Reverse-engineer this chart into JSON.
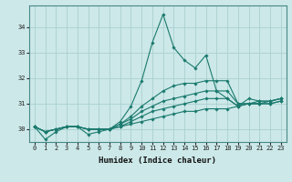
{
  "xlabel": "Humidex (Indice chaleur)",
  "ylabel": "",
  "background_color": "#cce8e8",
  "grid_color": "#aad0d0",
  "line_color": "#1a7a6e",
  "xlim": [
    -0.5,
    23.5
  ],
  "ylim": [
    29.5,
    34.85
  ],
  "yticks": [
    30,
    31,
    32,
    33,
    34
  ],
  "xticks": [
    0,
    1,
    2,
    3,
    4,
    5,
    6,
    7,
    8,
    9,
    10,
    11,
    12,
    13,
    14,
    15,
    16,
    17,
    18,
    19,
    20,
    21,
    22,
    23
  ],
  "series": [
    [
      30.1,
      29.6,
      29.9,
      30.1,
      30.1,
      29.8,
      29.9,
      30.0,
      30.3,
      30.9,
      31.9,
      33.4,
      34.5,
      33.2,
      32.7,
      32.4,
      32.9,
      31.5,
      31.2,
      30.9,
      31.2,
      31.1,
      31.1,
      31.2
    ],
    [
      30.1,
      29.9,
      30.0,
      30.1,
      30.1,
      30.0,
      30.0,
      30.0,
      30.2,
      30.5,
      30.9,
      31.2,
      31.5,
      31.7,
      31.8,
      31.8,
      31.9,
      31.9,
      31.9,
      31.0,
      31.0,
      31.1,
      31.1,
      31.2
    ],
    [
      30.1,
      29.9,
      30.0,
      30.1,
      30.1,
      30.0,
      30.0,
      30.0,
      30.2,
      30.4,
      30.7,
      30.9,
      31.1,
      31.2,
      31.3,
      31.4,
      31.5,
      31.5,
      31.5,
      31.0,
      31.0,
      31.0,
      31.1,
      31.2
    ],
    [
      30.1,
      29.9,
      30.0,
      30.1,
      30.1,
      30.0,
      30.0,
      30.0,
      30.1,
      30.3,
      30.5,
      30.7,
      30.8,
      30.9,
      31.0,
      31.1,
      31.2,
      31.2,
      31.2,
      30.9,
      31.0,
      31.0,
      31.0,
      31.1
    ],
    [
      30.1,
      29.9,
      30.0,
      30.1,
      30.1,
      30.0,
      30.0,
      30.0,
      30.1,
      30.2,
      30.3,
      30.4,
      30.5,
      30.6,
      30.7,
      30.7,
      30.8,
      30.8,
      30.8,
      30.9,
      31.0,
      31.0,
      31.0,
      31.1
    ]
  ]
}
